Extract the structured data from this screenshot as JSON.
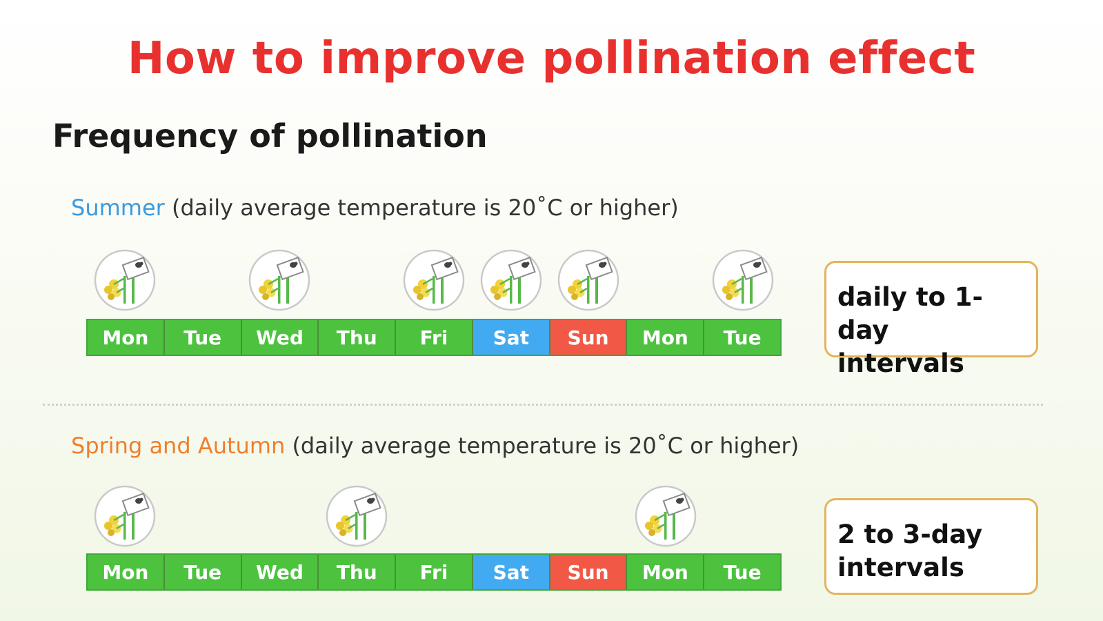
{
  "title": "How to improve pollination effect",
  "subtitle": "Frequency of pollination",
  "colors": {
    "weekday": "#4cc23f",
    "saturday": "#42aaf0",
    "sunday": "#f25846",
    "title": "#e8312f",
    "box_border": "#e3b45a"
  },
  "icon_name": "bee-pollinating-flower-icon",
  "summer": {
    "season": "Summer",
    "condition": " (daily average temperature is 20˚C or higher)",
    "days": [
      "Mon",
      "Tue",
      "Wed",
      "Thu",
      "Fri",
      "Sat",
      "Sun",
      "Mon",
      "Tue"
    ],
    "pollination_days": [
      1,
      0,
      1,
      0,
      1,
      1,
      1,
      0,
      1
    ],
    "note_line1": "daily to 1-day",
    "note_line2": "intervals"
  },
  "spring": {
    "season": "Spring and Autumn",
    "condition": " (daily average temperature is 20˚C or higher)",
    "days": [
      "Mon",
      "Tue",
      "Wed",
      "Thu",
      "Fri",
      "Sat",
      "Sun",
      "Mon",
      "Tue"
    ],
    "pollination_days": [
      1,
      0,
      0,
      1,
      0,
      0,
      0,
      1,
      0
    ],
    "note_line1": "2 to 3-day",
    "note_line2": "intervals"
  }
}
